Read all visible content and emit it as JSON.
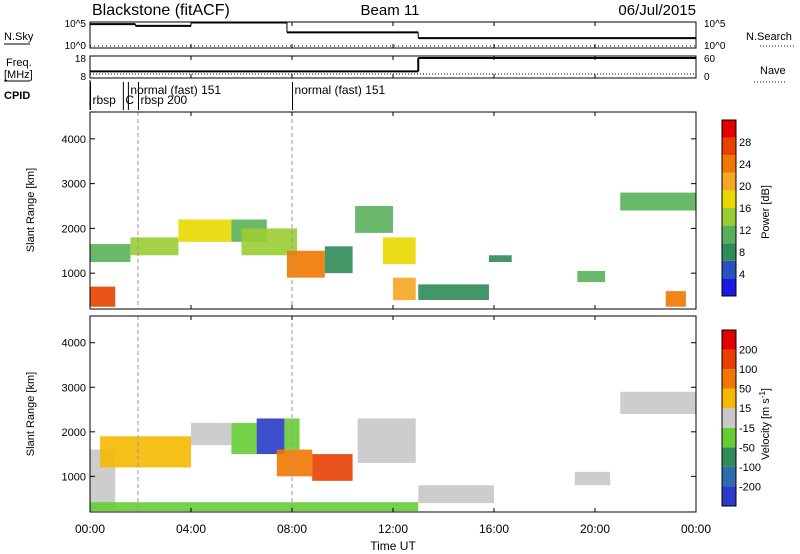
{
  "header": {
    "station": "Blackstone (fitACF)",
    "beam": "Beam 11",
    "date": "06/Jul/2015"
  },
  "chart_data": {
    "type": "heatmap",
    "time_axis": {
      "label": "Time UT",
      "ticks": [
        "00:00",
        "04:00",
        "08:00",
        "12:00",
        "16:00",
        "20:00",
        "00:00"
      ],
      "range_hours": [
        0,
        24
      ]
    },
    "noise_panel": {
      "left_label": "N.Sky",
      "right_label": "N.Search",
      "left_ticks": [
        "10^5",
        "10^0"
      ],
      "right_ticks": [
        "10^5",
        "10^0"
      ],
      "sky_segments": [
        {
          "start": 0.0,
          "end": 1.8,
          "level": 0.92
        },
        {
          "start": 1.8,
          "end": 4.0,
          "level": 0.85
        },
        {
          "start": 4.0,
          "end": 7.8,
          "level": 0.98
        },
        {
          "start": 7.8,
          "end": 13.0,
          "level": 0.6
        },
        {
          "start": 13.0,
          "end": 24.0,
          "level": 0.38
        }
      ]
    },
    "freq_panel": {
      "left_label": "Freq.",
      "left_unit": "[MHz]",
      "left_ticks": [
        "18",
        "8"
      ],
      "right_label": "Nave",
      "right_ticks": [
        "60",
        "0"
      ],
      "freq_level": 0.18,
      "nave_segments": [
        {
          "start": 0.0,
          "end": 13.0,
          "level": 0.3
        },
        {
          "start": 13.0,
          "end": 24.0,
          "level": 1.0
        }
      ]
    },
    "cpid": {
      "label": "CPID",
      "entries": [
        {
          "text": "rbsp",
          "time": 0.1,
          "row": 1
        },
        {
          "text": "C",
          "time": 1.4,
          "row": 1
        },
        {
          "text": "normal (fast) 151",
          "time": 1.6,
          "row": 0
        },
        {
          "text": "rbsp 200",
          "time": 2.0,
          "row": 1
        },
        {
          "text": "normal (fast) 151",
          "time": 8.1,
          "row": 0
        }
      ],
      "dashed_times": [
        1.9,
        8.0
      ]
    },
    "y_axis": {
      "label": "Slant Range [km]",
      "ticks": [
        1000,
        2000,
        3000,
        4000
      ],
      "range": [
        200,
        4600
      ]
    },
    "power_panel": {
      "colorbar_label": "Power [dB]",
      "colorbar_ticks": [
        4,
        8,
        12,
        16,
        20,
        24,
        28
      ],
      "colors": [
        "#1a1ae6",
        "#2a52be",
        "#2e8b57",
        "#5ab05a",
        "#9acd32",
        "#e8d800",
        "#f5a623",
        "#f07800",
        "#e84000",
        "#e00000"
      ],
      "range": [
        0,
        32
      ],
      "patches": [
        {
          "t0": 0.0,
          "t1": 1.0,
          "r0": 250,
          "r1": 700,
          "value": 28
        },
        {
          "t0": 0.0,
          "t1": 1.6,
          "r0": 1250,
          "r1": 1650,
          "value": 12
        },
        {
          "t0": 1.6,
          "t1": 3.5,
          "r0": 1400,
          "r1": 1800,
          "value": 14
        },
        {
          "t0": 3.5,
          "t1": 5.6,
          "r0": 1700,
          "r1": 2200,
          "value": 16
        },
        {
          "t0": 5.6,
          "t1": 7.0,
          "r0": 1700,
          "r1": 2200,
          "value": 10
        },
        {
          "t0": 6.0,
          "t1": 8.2,
          "r0": 1400,
          "r1": 2000,
          "value": 14
        },
        {
          "t0": 7.8,
          "t1": 9.3,
          "r0": 900,
          "r1": 1500,
          "value": 24
        },
        {
          "t0": 9.3,
          "t1": 10.4,
          "r0": 1000,
          "r1": 1600,
          "value": 8
        },
        {
          "t0": 10.5,
          "t1": 12.0,
          "r0": 1900,
          "r1": 2500,
          "value": 10
        },
        {
          "t0": 11.6,
          "t1": 12.9,
          "r0": 1200,
          "r1": 1800,
          "value": 16
        },
        {
          "t0": 12.0,
          "t1": 12.9,
          "r0": 400,
          "r1": 900,
          "value": 20
        },
        {
          "t0": 13.0,
          "t1": 15.8,
          "r0": 400,
          "r1": 750,
          "value": 8
        },
        {
          "t0": 15.8,
          "t1": 16.7,
          "r0": 1250,
          "r1": 1400,
          "value": 8
        },
        {
          "t0": 19.3,
          "t1": 20.4,
          "r0": 800,
          "r1": 1050,
          "value": 12
        },
        {
          "t0": 21.0,
          "t1": 24.0,
          "r0": 2400,
          "r1": 2800,
          "value": 12
        },
        {
          "t0": 22.8,
          "t1": 23.6,
          "r0": 250,
          "r1": 600,
          "value": 24
        }
      ]
    },
    "velocity_panel": {
      "colorbar_label": "Velocity [m s^-1]",
      "colorbar_ticks": [
        "200",
        "100",
        "50",
        "15",
        "-15",
        "-50",
        "-100",
        "-200"
      ],
      "colors": [
        "#2a3bc8",
        "#2f6bb0",
        "#2e8b57",
        "#66cc33",
        "#c8c8c8",
        "#f5b800",
        "#f07800",
        "#e84000",
        "#e00000"
      ],
      "patches": [
        {
          "t0": 0.0,
          "t1": 1.0,
          "r0": 250,
          "r1": 1600,
          "category": 4
        },
        {
          "t0": 0.4,
          "t1": 4.0,
          "r0": 1200,
          "r1": 1900,
          "category": 5
        },
        {
          "t0": 4.0,
          "t1": 5.6,
          "r0": 1700,
          "r1": 2200,
          "category": 4
        },
        {
          "t0": 5.6,
          "t1": 6.6,
          "r0": 1500,
          "r1": 2200,
          "category": 3
        },
        {
          "t0": 6.6,
          "t1": 7.7,
          "r0": 1500,
          "r1": 2300,
          "category": 0
        },
        {
          "t0": 7.7,
          "t1": 8.3,
          "r0": 1600,
          "r1": 2300,
          "category": 3
        },
        {
          "t0": 7.4,
          "t1": 8.8,
          "r0": 1000,
          "r1": 1600,
          "category": 6
        },
        {
          "t0": 8.8,
          "t1": 10.4,
          "r0": 900,
          "r1": 1500,
          "category": 7
        },
        {
          "t0": 10.6,
          "t1": 12.9,
          "r0": 1300,
          "r1": 2300,
          "category": 4
        },
        {
          "t0": 13.0,
          "t1": 16.0,
          "r0": 400,
          "r1": 800,
          "category": 4
        },
        {
          "t0": 19.2,
          "t1": 20.6,
          "r0": 800,
          "r1": 1100,
          "category": 4
        },
        {
          "t0": 21.0,
          "t1": 24.0,
          "r0": 2400,
          "r1": 2900,
          "category": 4
        },
        {
          "t0": 0.0,
          "t1": 13.0,
          "r0": 220,
          "r1": 420,
          "category": 3
        }
      ]
    }
  }
}
